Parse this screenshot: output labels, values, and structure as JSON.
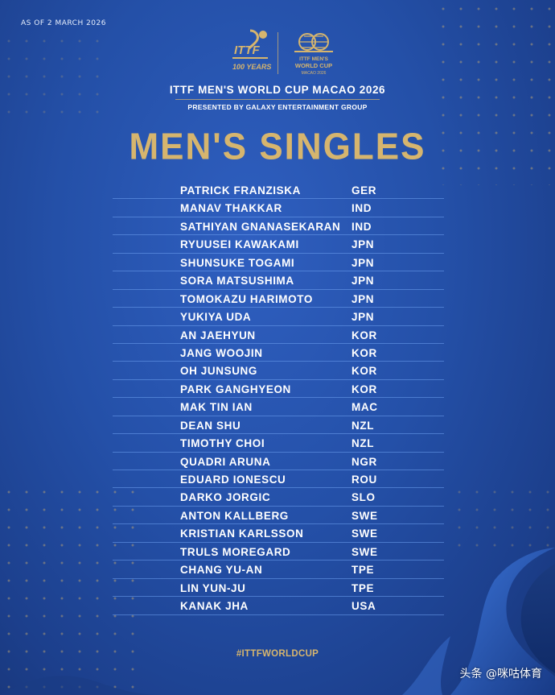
{
  "header": {
    "as_of": "AS OF 2 MARCH 2026",
    "ittf_logo_text": "ITTF",
    "ittf_logo_sub": "100 YEARS",
    "wc_logo_line1": "ITTF MEN'S",
    "wc_logo_line2": "WORLD CUP",
    "wc_logo_line3": "MACAO 2026",
    "event_title": "ITTF MEN'S WORLD CUP MACAO 2026",
    "presented_by": "PRESENTED BY GALAXY ENTERTAINMENT GROUP"
  },
  "main_title": "MEN'S SINGLES",
  "players": [
    {
      "name": "PATRICK FRANZISKA",
      "country": "GER"
    },
    {
      "name": "MANAV THAKKAR",
      "country": "IND"
    },
    {
      "name": "SATHIYAN GNANASEKARAN",
      "country": "IND"
    },
    {
      "name": "RYUUSEI KAWAKAMI",
      "country": "JPN"
    },
    {
      "name": "SHUNSUKE TOGAMI",
      "country": "JPN"
    },
    {
      "name": "SORA MATSUSHIMA",
      "country": "JPN"
    },
    {
      "name": "TOMOKAZU HARIMOTO",
      "country": "JPN"
    },
    {
      "name": "YUKIYA UDA",
      "country": "JPN"
    },
    {
      "name": "AN JAEHYUN",
      "country": "KOR"
    },
    {
      "name": "JANG WOOJIN",
      "country": "KOR"
    },
    {
      "name": "OH JUNSUNG",
      "country": "KOR"
    },
    {
      "name": "PARK GANGHYEON",
      "country": "KOR"
    },
    {
      "name": "MAK TIN IAN",
      "country": "MAC"
    },
    {
      "name": "DEAN SHU",
      "country": "NZL"
    },
    {
      "name": "TIMOTHY CHOI",
      "country": "NZL"
    },
    {
      "name": "QUADRI ARUNA",
      "country": "NGR"
    },
    {
      "name": "EDUARD IONESCU",
      "country": "ROU"
    },
    {
      "name": "DARKO JORGIC",
      "country": "SLO"
    },
    {
      "name": "ANTON KALLBERG",
      "country": "SWE"
    },
    {
      "name": "KRISTIAN KARLSSON",
      "country": "SWE"
    },
    {
      "name": "TRULS MOREGARD",
      "country": "SWE"
    },
    {
      "name": "CHANG YU-AN",
      "country": "TPE"
    },
    {
      "name": "LIN YUN-JU",
      "country": "TPE"
    },
    {
      "name": "KANAK JHA",
      "country": "USA"
    }
  ],
  "hashtag": "#ITTFWORLDCUP",
  "watermark": "头条 @咪咕体育",
  "colors": {
    "background": "#2450a8",
    "gold": "#d6b56e",
    "text": "#ffffff",
    "row_rule": "#6ea0f0"
  }
}
